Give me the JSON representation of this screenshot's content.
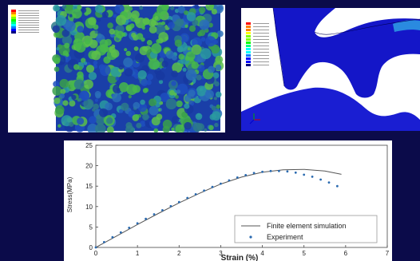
{
  "palette": [
    "#ff0000",
    "#ff7f00",
    "#ffff00",
    "#7fff00",
    "#00ff00",
    "#00ff7f",
    "#00ffff",
    "#007fff",
    "#0000ff",
    "#00007f"
  ],
  "chart_data": {
    "type": "line",
    "xlabel": "Strain (%)",
    "ylabel": "Stress(MPa)",
    "xlim": [
      0,
      7
    ],
    "ylim": [
      0,
      25
    ],
    "xticks": [
      0,
      1,
      2,
      3,
      4,
      5,
      6,
      7
    ],
    "yticks": [
      0,
      5,
      10,
      15,
      20,
      25
    ],
    "grid": false,
    "legend_position": "bottom-right",
    "series": [
      {
        "name": "Finite element simulation",
        "style": "line",
        "color": "#555555",
        "x": [
          0,
          0.5,
          1,
          1.5,
          2,
          2.5,
          3,
          3.5,
          4,
          4.5,
          5,
          5.5,
          5.9
        ],
        "y": [
          0,
          2.8,
          5.6,
          8.3,
          10.9,
          13.3,
          15.5,
          17.2,
          18.4,
          19.0,
          19.1,
          18.7,
          17.9
        ]
      },
      {
        "name": "Experiment",
        "style": "points",
        "color": "#2a6ab0",
        "x": [
          0,
          0.2,
          0.4,
          0.6,
          0.8,
          1,
          1.2,
          1.4,
          1.6,
          1.8,
          2,
          2.2,
          2.4,
          2.6,
          2.8,
          3,
          3.2,
          3.4,
          3.6,
          3.8,
          4,
          4.2,
          4.4,
          4.6,
          4.8,
          5,
          5.2,
          5.4,
          5.6,
          5.8
        ],
        "y": [
          0,
          1.3,
          2.5,
          3.7,
          4.8,
          5.9,
          7.0,
          8.1,
          9.1,
          10.1,
          11.1,
          12.1,
          13.0,
          13.9,
          14.8,
          15.6,
          16.4,
          17.1,
          17.7,
          18.2,
          18.5,
          18.7,
          18.7,
          18.6,
          18.3,
          17.8,
          17.3,
          16.6,
          15.9,
          15.0
        ]
      }
    ]
  }
}
